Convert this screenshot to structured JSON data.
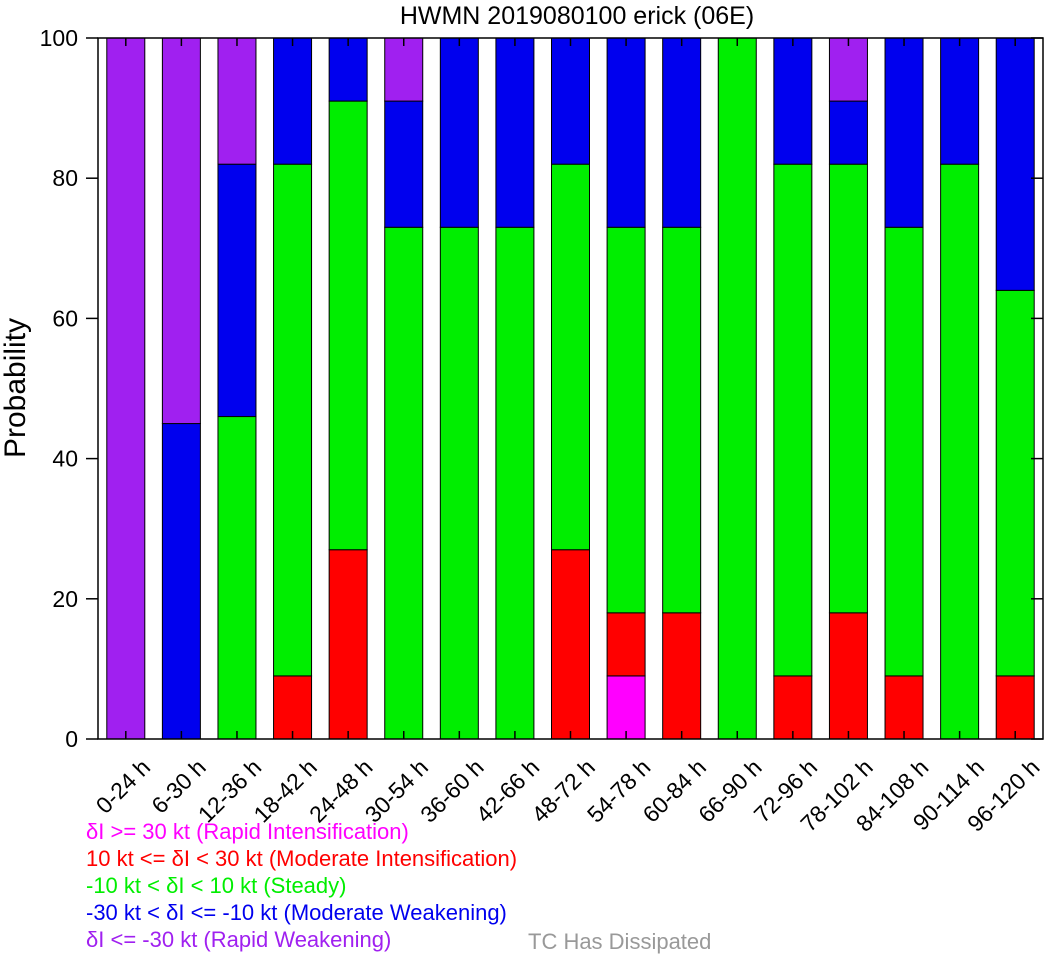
{
  "chart_data": {
    "type": "bar",
    "stacked": true,
    "title": "HWMN 2019080100 erick (06E)",
    "ylabel": "Probability",
    "xlabel": "",
    "ylim": [
      0,
      100
    ],
    "yticks": [
      0,
      20,
      40,
      60,
      80,
      100
    ],
    "categories": [
      "0-24 h",
      "6-30 h",
      "12-36 h",
      "18-42 h",
      "24-48 h",
      "30-54 h",
      "36-60 h",
      "42-66 h",
      "48-72 h",
      "54-78 h",
      "60-84 h",
      "66-90 h",
      "72-96 h",
      "78-102 h",
      "84-108 h",
      "90-114 h",
      "96-120 h"
    ],
    "series": [
      {
        "key": "ri",
        "color": "#ff00ff",
        "values": [
          0,
          0,
          0,
          0,
          0,
          0,
          0,
          0,
          0,
          9,
          0,
          0,
          0,
          0,
          0,
          0,
          0
        ]
      },
      {
        "key": "mi",
        "color": "#ff0000",
        "values": [
          0,
          0,
          0,
          9,
          27,
          0,
          0,
          0,
          27,
          9,
          18,
          0,
          9,
          18,
          9,
          0,
          9
        ]
      },
      {
        "key": "st",
        "color": "#00ee00",
        "values": [
          0,
          0,
          46,
          73,
          64,
          73,
          73,
          73,
          55,
          55,
          55,
          100,
          73,
          64,
          64,
          82,
          55
        ]
      },
      {
        "key": "mw",
        "color": "#0000ee",
        "values": [
          0,
          45,
          36,
          18,
          9,
          18,
          27,
          27,
          18,
          27,
          27,
          0,
          18,
          9,
          27,
          18,
          36
        ]
      },
      {
        "key": "rw",
        "color": "#a020f0",
        "values": [
          100,
          55,
          18,
          0,
          0,
          9,
          0,
          0,
          0,
          0,
          0,
          0,
          0,
          9,
          0,
          0,
          0
        ]
      }
    ],
    "grid": false,
    "legend_position": "bottom-left"
  },
  "legend": {
    "items": [
      {
        "label": "δI >= 30 kt (Rapid Intensification)",
        "color": "#ff00ff"
      },
      {
        "label": "10 kt <= δI < 30 kt (Moderate Intensification)",
        "color": "#ff0000"
      },
      {
        "label": "-10 kt < δI < 10 kt (Steady)",
        "color": "#00ee00"
      },
      {
        "label": "-30 kt < δI <= -10 kt (Moderate Weakening)",
        "color": "#0000ee"
      },
      {
        "label": "δI <= -30 kt (Rapid Weakening)",
        "color": "#a020f0"
      }
    ],
    "dissipated_label": "TC Has Dissipated",
    "dissipated_color": "#999999"
  }
}
